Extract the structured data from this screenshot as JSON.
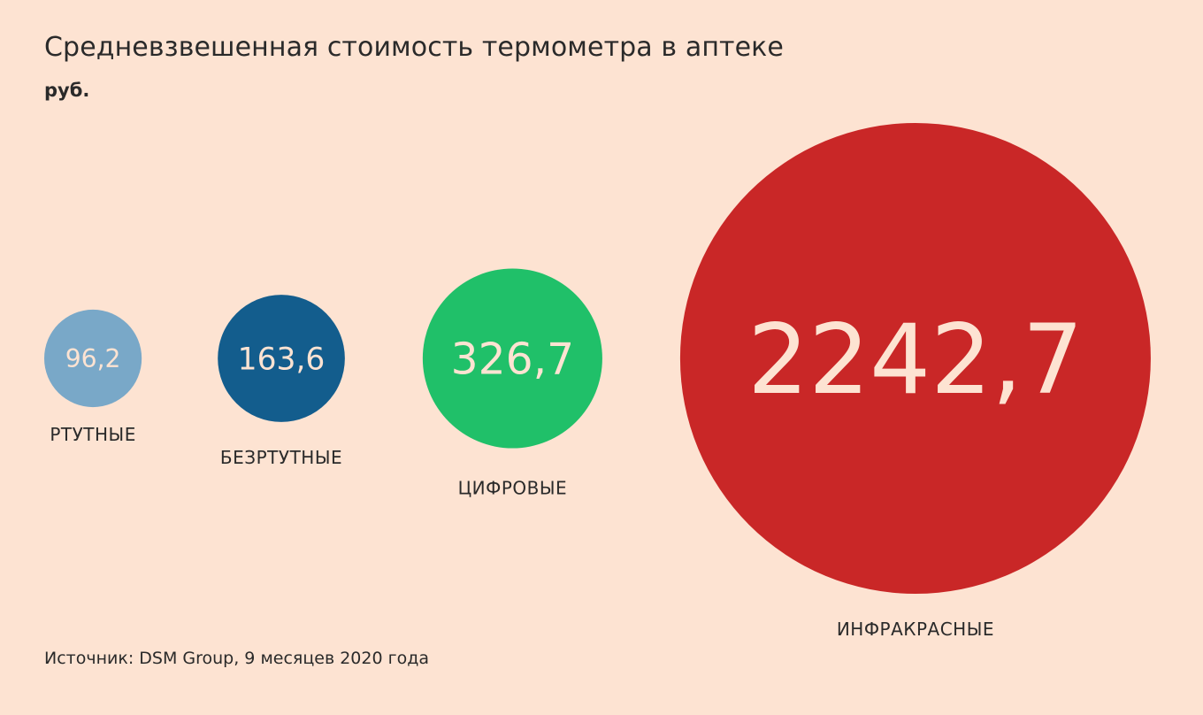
{
  "chart_data": {
    "type": "bubble",
    "title": "Средневзвешенная стоимость термометра в аптеке",
    "unit": "руб.",
    "source": "Источник: DSM Group, 9 месяцев 2020 года",
    "categories": [
      "РТУТНЫЕ",
      "БЕЗРТУТНЫЕ",
      "ЦИФРОВЫЕ",
      "ИНФРАКРАСНЫЕ"
    ],
    "values": [
      96.2,
      163.6,
      326.7,
      2242.7
    ],
    "value_labels": [
      "96,2",
      "163,6",
      "326,7",
      "2242,7"
    ],
    "colors": [
      "#79a8c8",
      "#135d8d",
      "#20c069",
      "#c92727"
    ],
    "value_text_color": "#fde3d2"
  }
}
